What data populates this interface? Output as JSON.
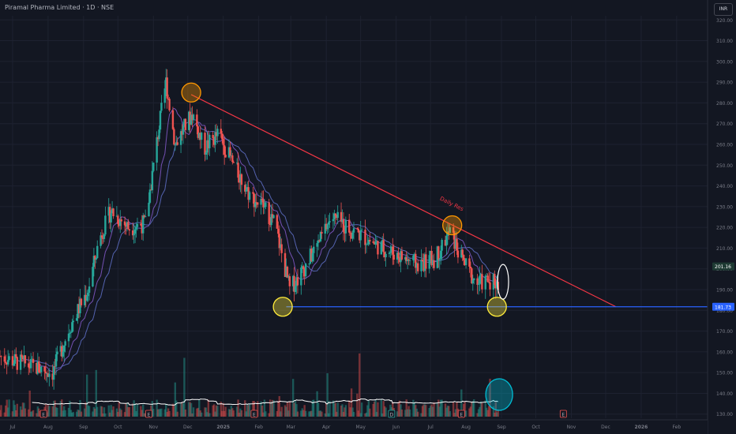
{
  "header": {
    "symbol_line": "Piramal Pharma Limited · 1D · NSE",
    "currency_button": "INR"
  },
  "colors": {
    "background": "#131722",
    "grid": "#1e2230",
    "axis_text": "#787b86",
    "candle_up": "#26a69a",
    "candle_down": "#ef5350",
    "trendline": "#f23645",
    "support_line": "#2962ff",
    "current_price_label": "#1e3a33",
    "ma_fast": "#7e57c2",
    "ma_slow": "#5c6bc0",
    "volume_ma": "#ffffff",
    "marker_orange": "#ff9800",
    "marker_yellow": "#ffeb3b",
    "marker_cyan": "#00bcd4"
  },
  "chart_data": {
    "type": "candlestick",
    "title": "Piramal Pharma Limited · 1D · NSE",
    "price_axis": {
      "ticks": [
        "320.00",
        "310.00",
        "300.00",
        "290.00",
        "280.00",
        "270.00",
        "260.00",
        "250.00",
        "240.00",
        "230.00",
        "220.00",
        "210.00",
        "200.00",
        "190.00",
        "180.00",
        "170.00",
        "160.00",
        "150.00",
        "140.00",
        "130.00"
      ],
      "ylim": [
        128,
        322
      ]
    },
    "time_axis": {
      "ticks": [
        "Jul",
        "Aug",
        "Sep",
        "Oct",
        "Nov",
        "Dec",
        "2025",
        "Feb",
        "Mar",
        "Apr",
        "May",
        "Jun",
        "Jul",
        "Aug",
        "Sep",
        "Oct",
        "Nov",
        "Dec",
        "2026",
        "Feb"
      ],
      "start_date": "2024-06-20",
      "end_date": "2026-02-28"
    },
    "price_path": [
      {
        "date": "2024-06-20",
        "close": 158
      },
      {
        "date": "2024-07-05",
        "close": 155
      },
      {
        "date": "2024-07-25",
        "close": 152
      },
      {
        "date": "2024-08-05",
        "close": 150
      },
      {
        "date": "2024-08-20",
        "close": 172
      },
      {
        "date": "2024-09-05",
        "close": 190
      },
      {
        "date": "2024-09-15",
        "close": 215
      },
      {
        "date": "2024-09-25",
        "close": 228
      },
      {
        "date": "2024-10-10",
        "close": 220
      },
      {
        "date": "2024-10-25",
        "close": 222
      },
      {
        "date": "2024-11-05",
        "close": 265
      },
      {
        "date": "2024-11-12",
        "close": 290
      },
      {
        "date": "2024-11-20",
        "close": 260
      },
      {
        "date": "2024-12-05",
        "close": 275
      },
      {
        "date": "2024-12-15",
        "close": 258
      },
      {
        "date": "2024-12-28",
        "close": 265
      },
      {
        "date": "2025-01-10",
        "close": 250
      },
      {
        "date": "2025-01-25",
        "close": 235
      },
      {
        "date": "2025-02-05",
        "close": 230
      },
      {
        "date": "2025-02-15",
        "close": 222
      },
      {
        "date": "2025-02-28",
        "close": 190
      },
      {
        "date": "2025-03-10",
        "close": 198
      },
      {
        "date": "2025-03-25",
        "close": 212
      },
      {
        "date": "2025-04-05",
        "close": 225
      },
      {
        "date": "2025-04-20",
        "close": 220
      },
      {
        "date": "2025-05-05",
        "close": 215
      },
      {
        "date": "2025-05-20",
        "close": 210
      },
      {
        "date": "2025-06-05",
        "close": 206
      },
      {
        "date": "2025-06-20",
        "close": 202
      },
      {
        "date": "2025-07-05",
        "close": 205
      },
      {
        "date": "2025-07-18",
        "close": 218
      },
      {
        "date": "2025-07-28",
        "close": 205
      },
      {
        "date": "2025-08-10",
        "close": 193
      },
      {
        "date": "2025-08-25",
        "close": 195
      },
      {
        "date": "2025-09-01",
        "close": 189
      }
    ],
    "key_prices": {
      "high": 307,
      "low": 146,
      "last": 201.16
    },
    "price_labels": [
      {
        "text": "201.16",
        "value": 201.16
      },
      {
        "text": "181.73",
        "value": 181.73
      }
    ],
    "trendline": {
      "name": "Daily Res",
      "start": {
        "date": "2024-12-04",
        "value": 284
      },
      "end": {
        "date": "2025-12-10",
        "value": 181.73
      }
    },
    "support": {
      "value": 181.73,
      "start_date": "2025-02-25"
    },
    "markers": [
      {
        "date": "2024-12-04",
        "value": 285,
        "color": "orange"
      },
      {
        "date": "2025-07-20",
        "value": 221,
        "color": "orange"
      },
      {
        "date": "2025-02-22",
        "value": 181.73,
        "color": "yellow"
      },
      {
        "date": "2025-08-28",
        "value": 181.73,
        "color": "yellow"
      },
      {
        "date": "2025-09-01",
        "value": 193,
        "color": "white"
      }
    ],
    "volume_highlight": {
      "date": "2025-08-30",
      "color": "cyan"
    },
    "event_markers": [
      {
        "date": "2024-07-28",
        "label": "E"
      },
      {
        "date": "2024-10-28",
        "label": "E"
      },
      {
        "date": "2025-01-28",
        "label": "E"
      },
      {
        "date": "2025-05-28",
        "label": "D"
      },
      {
        "date": "2025-07-28",
        "label": "E"
      },
      {
        "date": "2025-10-25",
        "label": "E"
      }
    ]
  }
}
